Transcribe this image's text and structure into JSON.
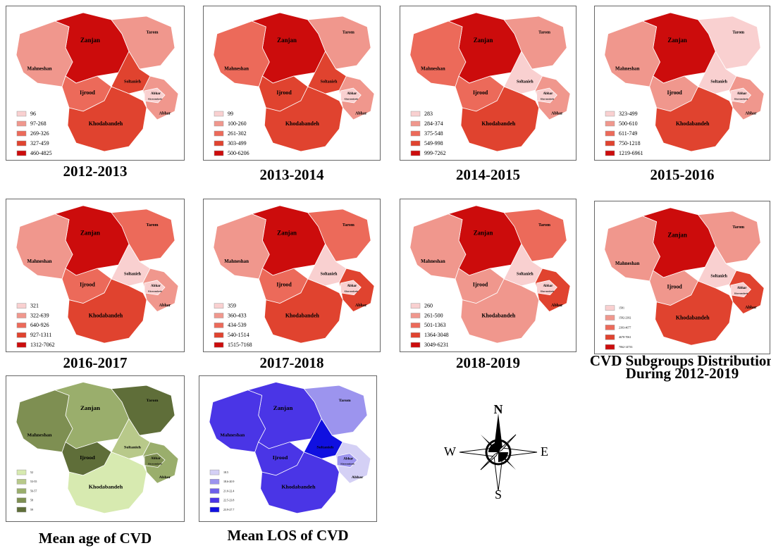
{
  "region_labels": [
    "Zanjan",
    "Tarom",
    "Mahneshan",
    "Soltanieh",
    "Ijrood",
    "Abhar",
    "Khorramdareh",
    "Abhar",
    "Khodabandeh"
  ],
  "compass": {
    "north": "N",
    "east": "E",
    "south": "S",
    "west": "W"
  },
  "maps": [
    {
      "caption": [
        "2012-2013"
      ],
      "legend": [
        "96",
        "97-268",
        "269-326",
        "327-459",
        "460-4825"
      ],
      "legend_colors": [
        "#f9d0d0",
        "#f0978d",
        "#ec6a5a",
        "#e0432f",
        "#cc0c0c"
      ],
      "region_colors": [
        "#cc0c0c",
        "#f0978d",
        "#f0978d",
        "#e0432f",
        "#ec6a5a",
        "#f0978d",
        "#f9d0d0",
        "#e0432f"
      ]
    },
    {
      "caption": [
        "2013-2014"
      ],
      "legend": [
        "99",
        "100-260",
        "261-302",
        "303-499",
        "500-6206"
      ],
      "legend_colors": [
        "#f9d0d0",
        "#f0978d",
        "#ec6a5a",
        "#e0432f",
        "#cc0c0c"
      ],
      "region_colors": [
        "#cc0c0c",
        "#f0978d",
        "#ec6a5a",
        "#e0432f",
        "#e0432f",
        "#f0978d",
        "#f9d0d0",
        "#e0432f"
      ]
    },
    {
      "caption": [
        "2014-2015"
      ],
      "legend": [
        "283",
        "284-374",
        "375-548",
        "549-998",
        "999-7262"
      ],
      "legend_colors": [
        "#f9d0d0",
        "#f0978d",
        "#ec6a5a",
        "#e0432f",
        "#cc0c0c"
      ],
      "region_colors": [
        "#cc0c0c",
        "#f0978d",
        "#ec6a5a",
        "#f9d0d0",
        "#ec6a5a",
        "#f0978d",
        "#f9d0d0",
        "#e0432f"
      ]
    },
    {
      "caption": [
        "2015-2016"
      ],
      "legend": [
        "323-499",
        "500-610",
        "611-749",
        "750-1218",
        "1219-6961"
      ],
      "legend_colors": [
        "#f9d0d0",
        "#f0978d",
        "#ec6a5a",
        "#e0432f",
        "#cc0c0c"
      ],
      "region_colors": [
        "#cc0c0c",
        "#f9d0d0",
        "#f0978d",
        "#f9d0d0",
        "#f0978d",
        "#f0978d",
        "#f9d0d0",
        "#e0432f"
      ]
    },
    {
      "caption": [
        "2016-2017"
      ],
      "legend": [
        "321",
        "322-639",
        "640-926",
        "927-1311",
        "1312-7062"
      ],
      "legend_colors": [
        "#f9d0d0",
        "#f0978d",
        "#ec6a5a",
        "#e0432f",
        "#cc0c0c"
      ],
      "region_colors": [
        "#cc0c0c",
        "#ec6a5a",
        "#f0978d",
        "#f9d0d0",
        "#ec6a5a",
        "#f0978d",
        "#f9d0d0",
        "#e0432f"
      ]
    },
    {
      "caption": [
        "2017-2018"
      ],
      "legend": [
        "359",
        "360-433",
        "434-539",
        "540-1514",
        "1515-7168"
      ],
      "legend_colors": [
        "#f9d0d0",
        "#f0978d",
        "#ec6a5a",
        "#e0432f",
        "#cc0c0c"
      ],
      "region_colors": [
        "#cc0c0c",
        "#ec6a5a",
        "#f0978d",
        "#f9d0d0",
        "#ec6a5a",
        "#e0432f",
        "#f9d0d0",
        "#e0432f"
      ]
    },
    {
      "caption": [
        "2018-2019"
      ],
      "legend": [
        "260",
        "261-500",
        "501-1363",
        "1364-3048",
        "3049-6231"
      ],
      "legend_colors": [
        "#f9d0d0",
        "#f0978d",
        "#ec6a5a",
        "#e0432f",
        "#cc0c0c"
      ],
      "region_colors": [
        "#cc0c0c",
        "#ec6a5a",
        "#f0978d",
        "#f9d0d0",
        "#f0978d",
        "#e0432f",
        "#f9d0d0",
        "#f0978d"
      ]
    },
    {
      "caption": [
        "CVD Subgroups Distribution",
        "During 2012-2019"
      ],
      "legend": [
        "1581",
        "1582-2392",
        "2393-4677",
        "4678-7061",
        "7062-14733"
      ],
      "legend_colors": [
        "#f9d0d0",
        "#f0978d",
        "#ec6a5a",
        "#e0432f",
        "#cc0c0c"
      ],
      "region_colors": [
        "#cc0c0c",
        "#f0978d",
        "#f0978d",
        "#f9d0d0",
        "#f0978d",
        "#e0432f",
        "#f9d0d0",
        "#e0432f"
      ]
    },
    {
      "caption": [
        "Mean age of CVD"
      ],
      "legend": [
        "52",
        "53-55",
        "56-57",
        "58",
        "59"
      ],
      "legend_colors": [
        "#d7eab0",
        "#b8c98a",
        "#9aae6c",
        "#7e8f52",
        "#5f6e39"
      ],
      "region_colors": [
        "#9aae6c",
        "#5f6e39",
        "#7e8f52",
        "#b8c98a",
        "#5f6e39",
        "#9aae6c",
        "#7e8f52",
        "#d7eab0"
      ]
    },
    {
      "caption": [
        "Mean LOS of CVD"
      ],
      "legend": [
        "18.5",
        "18.6-20.9",
        "21.0-22.4",
        "22.5-23.8",
        "23.9-27.7"
      ],
      "legend_colors": [
        "#d4d0f5",
        "#9c94ee",
        "#6e60ea",
        "#4a35e6",
        "#1010e0"
      ],
      "region_colors": [
        "#4a35e6",
        "#9c94ee",
        "#4a35e6",
        "#1010e0",
        "#4a35e6",
        "#d4d0f5",
        "#9c94ee",
        "#4a35e6"
      ]
    }
  ]
}
